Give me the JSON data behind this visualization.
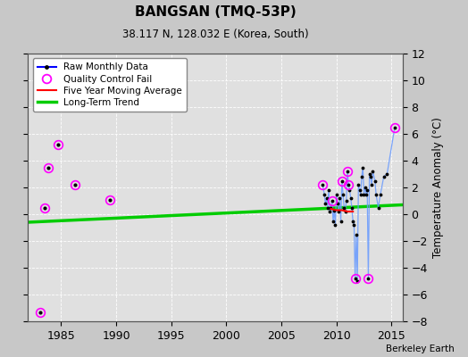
{
  "title": "BANGSAN (TMQ-53P)",
  "subtitle": "38.117 N, 128.032 E (Korea, South)",
  "ylabel": "Temperature Anomaly (°C)",
  "credit": "Berkeley Earth",
  "xlim": [
    1982,
    2016
  ],
  "ylim": [
    -8,
    12
  ],
  "yticks": [
    -8,
    -6,
    -4,
    -2,
    0,
    2,
    4,
    6,
    8,
    10,
    12
  ],
  "xticks": [
    1985,
    1990,
    1995,
    2000,
    2005,
    2010,
    2015
  ],
  "bg_color": "#c8c8c8",
  "plot_bg_color": "#e0e0e0",
  "grid_color": "#ffffff",
  "early_isolated": {
    "x": [
      1983.1,
      1983.5,
      1984.7,
      1986.3,
      1989.4,
      1983.8
    ],
    "y": [
      -7.3,
      0.5,
      5.2,
      2.2,
      1.1,
      3.5
    ]
  },
  "dense_data": {
    "segments": [
      {
        "x": [
          2008.75,
          2008.9,
          2009.0,
          2009.1,
          2009.2,
          2009.3,
          2009.4,
          2009.5,
          2009.6,
          2009.7,
          2009.8,
          2009.9,
          2010.0,
          2010.1,
          2010.2,
          2010.3,
          2010.4,
          2010.5,
          2010.6,
          2010.7,
          2010.8,
          2010.9,
          2011.0,
          2011.1,
          2011.2,
          2011.3,
          2011.4,
          2011.5,
          2011.6,
          2011.7,
          2011.8,
          2011.9,
          2012.0,
          2012.1,
          2012.2,
          2012.3,
          2012.4,
          2012.5,
          2012.6,
          2012.7,
          2012.8,
          2012.9,
          2013.0,
          2013.1,
          2013.2,
          2013.3,
          2013.5,
          2013.6,
          2013.8,
          2014.0,
          2014.3,
          2014.6,
          2015.3
        ],
        "y": [
          2.2,
          1.5,
          0.8,
          1.2,
          0.5,
          1.8,
          0.2,
          0.5,
          1.0,
          -0.5,
          0.3,
          -0.8,
          1.5,
          0.8,
          0.2,
          1.2,
          -0.5,
          2.5,
          1.5,
          0.5,
          0.2,
          1.0,
          3.2,
          2.2,
          1.8,
          1.2,
          0.5,
          -0.5,
          -0.8,
          -4.8,
          -1.5,
          -5.0,
          2.2,
          1.8,
          1.5,
          2.8,
          3.5,
          1.5,
          2.0,
          1.5,
          1.8,
          -4.8,
          3.0,
          2.8,
          2.2,
          3.2,
          2.5,
          1.5,
          0.5,
          1.5,
          2.8,
          3.0,
          6.5
        ]
      }
    ]
  },
  "qc_fail_early": {
    "x": [
      1983.1,
      1983.5,
      1984.7,
      1986.3,
      1989.4,
      1983.8
    ],
    "y": [
      -7.3,
      0.5,
      5.2,
      2.2,
      1.1,
      3.5
    ]
  },
  "qc_fail_dense": {
    "x": [
      2008.75,
      2009.6,
      2010.5,
      2011.0,
      2011.1,
      2011.7,
      2012.9,
      2015.3
    ],
    "y": [
      2.2,
      1.0,
      2.5,
      3.2,
      2.2,
      -4.8,
      -4.8,
      6.5
    ]
  },
  "moving_avg": {
    "x": [
      2009.5,
      2010.0,
      2010.5,
      2011.0,
      2011.5
    ],
    "y": [
      0.4,
      0.3,
      0.3,
      0.2,
      0.2
    ]
  },
  "trend": {
    "x": [
      1982,
      2016
    ],
    "y": [
      -0.6,
      0.7
    ]
  }
}
